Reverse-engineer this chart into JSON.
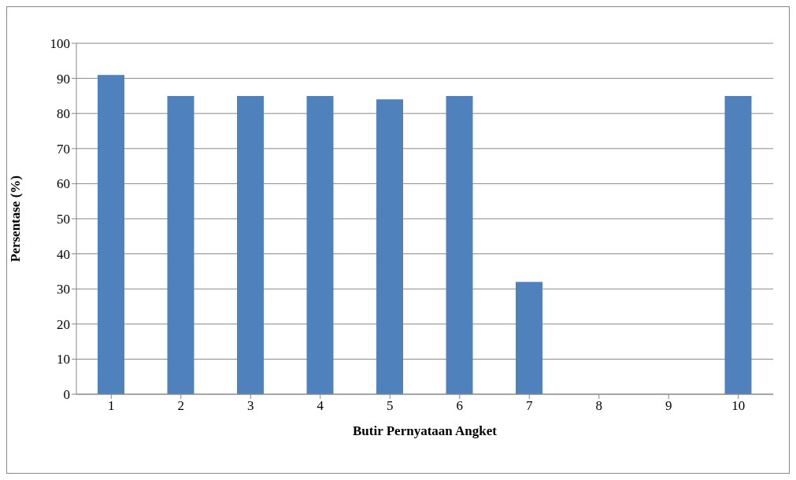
{
  "chart_data": {
    "type": "bar",
    "xlabel": "Butir Pernyataan Angket",
    "ylabel": "Persentase (%)",
    "categories": [
      "1",
      "2",
      "3",
      "4",
      "5",
      "6",
      "7",
      "8",
      "9",
      "10"
    ],
    "values": [
      91,
      85,
      85,
      85,
      84,
      85,
      32,
      0,
      0,
      85
    ],
    "color": "#4f81bd",
    "ylim": [
      0,
      100
    ],
    "yticks": [
      0,
      10,
      20,
      30,
      40,
      50,
      60,
      70,
      80,
      90,
      100
    ],
    "grid": "y"
  }
}
